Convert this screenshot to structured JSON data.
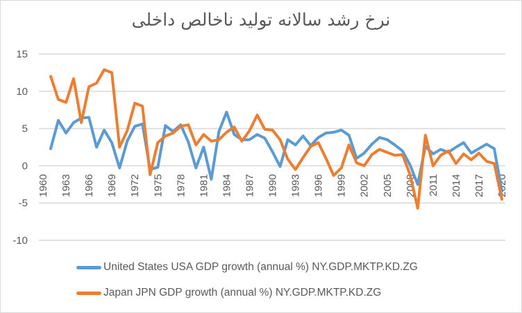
{
  "chart_data": {
    "type": "line",
    "title": "نرخ رشد سالانه تولید ناخالص داخلی",
    "xlabel": "",
    "ylabel": "",
    "ylim": [
      -10,
      15
    ],
    "yticks": [
      15,
      10,
      5,
      0,
      -5,
      -10
    ],
    "x_start": 1960,
    "x_end": 2020,
    "xtick_labels": [
      "1960",
      "1963",
      "1966",
      "1969",
      "1972",
      "1975",
      "1978",
      "1981",
      "1984",
      "1987",
      "1990",
      "1993",
      "1996",
      "1999",
      "2002",
      "2005",
      "2008",
      "2011",
      "2014",
      "2017",
      "2020"
    ],
    "grid": true,
    "legend_position": "bottom",
    "x": [
      1961,
      1962,
      1963,
      1964,
      1965,
      1966,
      1967,
      1968,
      1969,
      1970,
      1971,
      1972,
      1973,
      1974,
      1975,
      1976,
      1977,
      1978,
      1979,
      1980,
      1981,
      1982,
      1983,
      1984,
      1985,
      1986,
      1987,
      1988,
      1989,
      1990,
      1991,
      1992,
      1993,
      1994,
      1995,
      1996,
      1997,
      1998,
      1999,
      2000,
      2001,
      2002,
      2003,
      2004,
      2005,
      2006,
      2007,
      2008,
      2009,
      2010,
      2011,
      2012,
      2013,
      2014,
      2015,
      2016,
      2017,
      2018,
      2019,
      2020
    ],
    "series": [
      {
        "name": "United States USA GDP growth (annual %) NY.GDP.MKTP.KD.ZG",
        "color": "#5b9bd5",
        "values": [
          2.3,
          6.1,
          4.4,
          5.8,
          6.4,
          6.5,
          2.5,
          4.8,
          3.1,
          -0.3,
          3.3,
          5.3,
          5.6,
          -0.5,
          -0.2,
          5.4,
          4.6,
          5.5,
          3.2,
          -0.3,
          2.5,
          -1.8,
          4.6,
          7.2,
          4.2,
          3.5,
          3.5,
          4.2,
          3.7,
          1.9,
          -0.1,
          3.5,
          2.8,
          4.0,
          2.7,
          3.8,
          4.4,
          4.5,
          4.8,
          4.1,
          1.0,
          1.7,
          2.9,
          3.8,
          3.5,
          2.8,
          2.0,
          0.1,
          -2.5,
          2.6,
          1.6,
          2.2,
          1.8,
          2.5,
          3.1,
          1.7,
          2.3,
          2.9,
          2.3,
          -3.4
        ]
      },
      {
        "name": "Japan JPN GDP growth (annual %) NY.GDP.MKTP.KD.ZG",
        "color": "#ed7d31",
        "values": [
          12.0,
          8.9,
          8.5,
          11.7,
          5.8,
          10.6,
          11.1,
          12.9,
          12.5,
          2.5,
          4.7,
          8.4,
          8.0,
          -1.2,
          3.1,
          4.0,
          4.4,
          5.3,
          5.5,
          2.8,
          4.2,
          3.3,
          3.5,
          4.5,
          5.2,
          3.3,
          4.7,
          6.8,
          4.9,
          4.8,
          3.5,
          0.9,
          -0.5,
          1.1,
          2.6,
          3.1,
          1.0,
          -1.3,
          -0.3,
          2.8,
          0.4,
          0.0,
          1.5,
          2.2,
          1.8,
          1.4,
          1.5,
          -1.2,
          -5.7,
          4.1,
          0.0,
          1.4,
          2.0,
          0.3,
          1.6,
          0.8,
          1.7,
          0.6,
          0.3,
          -4.5
        ]
      }
    ]
  }
}
